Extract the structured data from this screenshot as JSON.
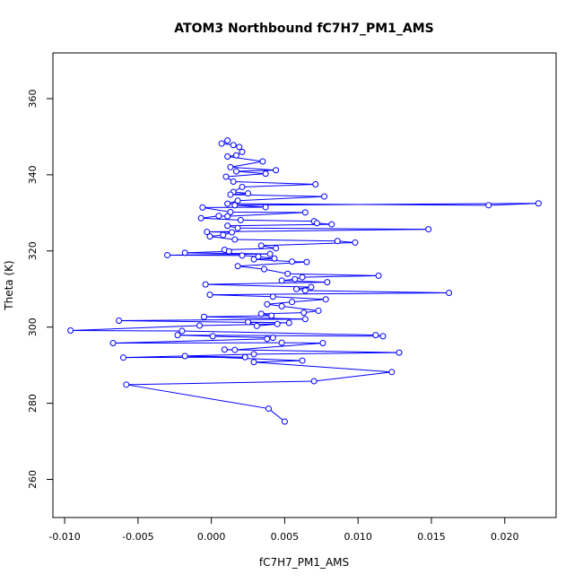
{
  "chart_data": {
    "type": "scatter",
    "title": "ATOM3 Northbound fC7H7_PM1_AMS",
    "xlabel": "fC7H7_PM1_AMS",
    "ylabel": "Theta (K)",
    "xlim": [
      -0.0108,
      0.0235
    ],
    "ylim": [
      250,
      372
    ],
    "x_ticks": [
      -0.01,
      -0.005,
      0.0,
      0.005,
      0.01,
      0.015,
      0.02
    ],
    "x_tick_labels": [
      "-0.010",
      "-0.005",
      "0.000",
      "0.005",
      "0.010",
      "0.015",
      "0.020"
    ],
    "y_ticks": [
      260,
      280,
      300,
      320,
      340,
      360
    ],
    "y_tick_labels": [
      "260",
      "280",
      "300",
      "320",
      "340",
      "360"
    ],
    "grid": false,
    "color": "#0000ff",
    "marker": "open-circle",
    "connected": true,
    "points": [
      [
        0.0011,
        349.0
      ],
      [
        0.0007,
        348.2
      ],
      [
        0.0015,
        347.8
      ],
      [
        0.0019,
        347.3
      ],
      [
        0.0021,
        346.0
      ],
      [
        0.0017,
        345.1
      ],
      [
        0.0011,
        344.8
      ],
      [
        0.0035,
        343.5
      ],
      [
        0.0013,
        342.0
      ],
      [
        0.0044,
        341.2
      ],
      [
        0.0017,
        340.9
      ],
      [
        0.0037,
        340.3
      ],
      [
        0.001,
        339.5
      ],
      [
        0.0015,
        338.2
      ],
      [
        0.0071,
        337.5
      ],
      [
        0.0021,
        336.8
      ],
      [
        0.0015,
        335.5
      ],
      [
        0.0025,
        335.1
      ],
      [
        0.0013,
        334.8
      ],
      [
        0.0077,
        334.3
      ],
      [
        0.0018,
        333.2
      ],
      [
        0.0011,
        332.4
      ],
      [
        0.0189,
        332.0
      ],
      [
        0.0223,
        332.5
      ],
      [
        0.0016,
        332.0
      ],
      [
        0.0037,
        331.5
      ],
      [
        -0.0006,
        331.4
      ],
      [
        0.0013,
        330.2
      ],
      [
        0.0064,
        330.1
      ],
      [
        0.0011,
        329.1
      ],
      [
        0.0005,
        329.2
      ],
      [
        -0.0007,
        328.6
      ],
      [
        0.002,
        328.1
      ],
      [
        0.007,
        327.8
      ],
      [
        0.0072,
        327.3
      ],
      [
        0.0082,
        327.0
      ],
      [
        0.0011,
        326.6
      ],
      [
        0.0018,
        326.0
      ],
      [
        0.0148,
        325.7
      ],
      [
        -0.0003,
        325.0
      ],
      [
        0.0014,
        324.9
      ],
      [
        0.0008,
        324.2
      ],
      [
        -0.0001,
        323.8
      ],
      [
        0.0016,
        323.0
      ],
      [
        0.0086,
        322.6
      ],
      [
        0.0098,
        322.2
      ],
      [
        0.0034,
        321.4
      ],
      [
        0.0044,
        320.7
      ],
      [
        0.0009,
        320.3
      ],
      [
        0.0012,
        319.9
      ],
      [
        -0.0018,
        319.5
      ],
      [
        0.004,
        319.2
      ],
      [
        -0.003,
        318.9
      ],
      [
        0.0021,
        318.8
      ],
      [
        0.0032,
        318.5
      ],
      [
        0.0043,
        318.0
      ],
      [
        0.0029,
        317.8
      ],
      [
        0.0055,
        317.2
      ],
      [
        0.0065,
        317.1
      ],
      [
        0.0018,
        316.0
      ],
      [
        0.0036,
        315.2
      ],
      [
        0.0052,
        314.0
      ],
      [
        0.0114,
        313.5
      ],
      [
        0.0062,
        313.1
      ],
      [
        0.0057,
        312.6
      ],
      [
        0.0048,
        312.2
      ],
      [
        0.0079,
        311.8
      ],
      [
        -0.0004,
        311.2
      ],
      [
        0.0068,
        310.5
      ],
      [
        0.0058,
        310.0
      ],
      [
        0.0064,
        309.6
      ],
      [
        0.0162,
        309.0
      ],
      [
        -0.0001,
        308.5
      ],
      [
        0.0042,
        308.0
      ],
      [
        0.0078,
        307.3
      ],
      [
        0.0055,
        306.6
      ],
      [
        0.0038,
        306.0
      ],
      [
        0.0048,
        305.5
      ],
      [
        0.0073,
        304.3
      ],
      [
        0.0063,
        303.8
      ],
      [
        0.0034,
        303.5
      ],
      [
        0.0041,
        303.0
      ],
      [
        -0.0005,
        302.7
      ],
      [
        0.0064,
        302.1
      ],
      [
        -0.0063,
        301.7
      ],
      [
        0.0053,
        301.1
      ],
      [
        0.0025,
        301.3
      ],
      [
        0.0031,
        300.3
      ],
      [
        0.0045,
        300.8
      ],
      [
        -0.0008,
        300.4
      ],
      [
        -0.0096,
        299.1
      ],
      [
        -0.002,
        299.0
      ],
      [
        0.0112,
        297.9
      ],
      [
        0.0117,
        297.6
      ],
      [
        -0.0023,
        297.9
      ],
      [
        0.0001,
        297.6
      ],
      [
        0.0042,
        297.2
      ],
      [
        0.0038,
        296.9
      ],
      [
        -0.0067,
        295.8
      ],
      [
        0.0048,
        295.9
      ],
      [
        0.0076,
        295.8
      ],
      [
        0.0016,
        294.0
      ],
      [
        0.0009,
        294.1
      ],
      [
        0.0128,
        293.3
      ],
      [
        0.0029,
        292.9
      ],
      [
        -0.006,
        292.0
      ],
      [
        0.0023,
        292.1
      ],
      [
        -0.0018,
        292.4
      ],
      [
        0.0062,
        291.2
      ],
      [
        0.0029,
        290.8
      ],
      [
        0.0123,
        288.2
      ],
      [
        0.007,
        285.8
      ],
      [
        -0.0058,
        284.9
      ],
      [
        0.0039,
        278.6
      ],
      [
        0.005,
        275.2
      ]
    ]
  }
}
